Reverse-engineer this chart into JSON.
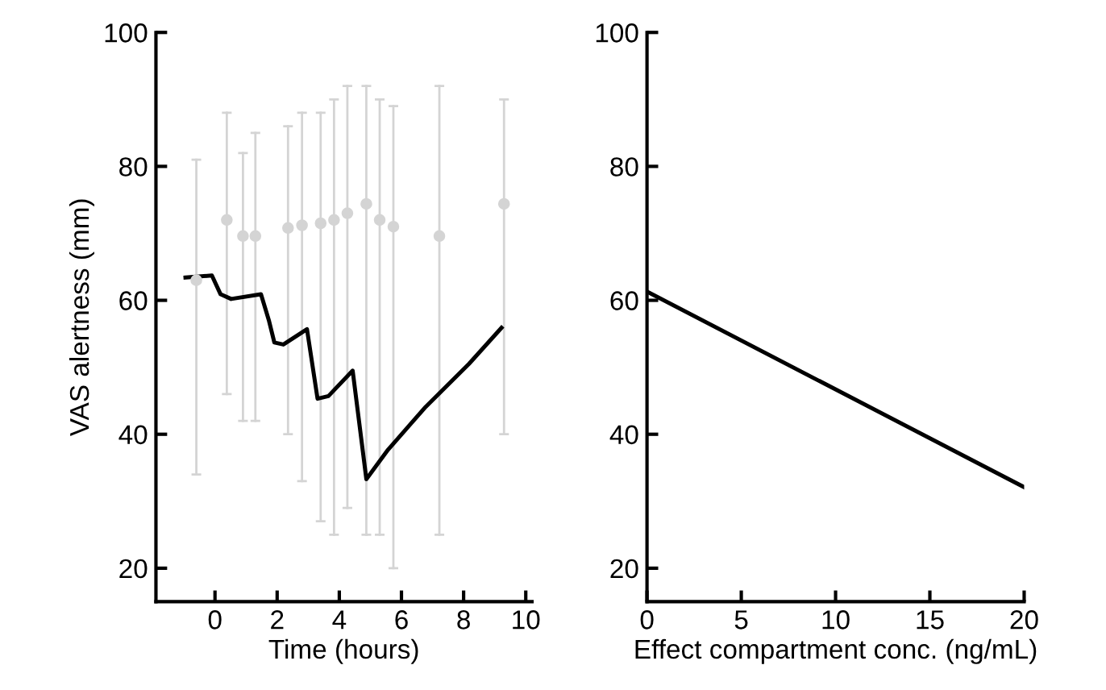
{
  "chart_data": [
    {
      "type": "line",
      "ylabel": "VAS alertness (mm)",
      "xlabel": "Time (hours)",
      "xlim": [
        -1.9,
        10.2
      ],
      "ylim": [
        15,
        100
      ],
      "xticks": [
        0,
        2,
        4,
        6,
        8,
        10
      ],
      "yticks": [
        20,
        40,
        60,
        80,
        100
      ],
      "grid": false,
      "line_style": "solid",
      "series": [
        {
          "type": "scatter",
          "color": "#d4d4d4",
          "marker": "circle",
          "x": [
            -0.6,
            0.38,
            0.9,
            1.3,
            2.35,
            2.8,
            3.4,
            3.83,
            4.26,
            4.87,
            5.3,
            5.74,
            7.22,
            9.3
          ],
          "values": [
            63,
            72,
            69.6,
            69.6,
            70.8,
            71.2,
            71.5,
            72,
            73,
            74.4,
            72,
            71,
            69.6,
            74.4
          ],
          "errors": [
            [
              34,
              81
            ],
            [
              46,
              88
            ],
            [
              42,
              82
            ],
            [
              42,
              85
            ],
            [
              40,
              86
            ],
            [
              33,
              88
            ],
            [
              27,
              88
            ],
            [
              25,
              90
            ],
            [
              29,
              92
            ],
            [
              25,
              92
            ],
            [
              25,
              90
            ],
            [
              20,
              89
            ],
            [
              25,
              92
            ],
            [
              40,
              90
            ]
          ]
        },
        {
          "color": "#000000",
          "x": [
            -0.95,
            -0.1,
            0.18,
            0.52,
            1.48,
            1.74,
            1.91,
            2.2,
            2.96,
            3.3,
            3.65,
            4.43,
            4.87,
            5.57,
            6.78,
            8.17,
            9.22
          ],
          "values": [
            63.4,
            63.7,
            60.9,
            60.2,
            60.9,
            56.9,
            53.7,
            53.4,
            55.7,
            45.3,
            45.7,
            49.5,
            33.3,
            37.7,
            44.1,
            50.5,
            55.9
          ]
        }
      ]
    },
    {
      "type": "line",
      "xlabel": "Effect compartment conc. (ng/mL)",
      "xlim": [
        0,
        20
      ],
      "ylim": [
        15,
        100
      ],
      "xticks": [
        0,
        5,
        10,
        15,
        20
      ],
      "yticks": [
        20,
        40,
        60,
        80,
        100
      ],
      "grid": false,
      "line_style": "solid",
      "series": [
        {
          "color": "#000000",
          "x": [
            0,
            20
          ],
          "values": [
            61.3,
            32.1
          ]
        }
      ]
    }
  ]
}
